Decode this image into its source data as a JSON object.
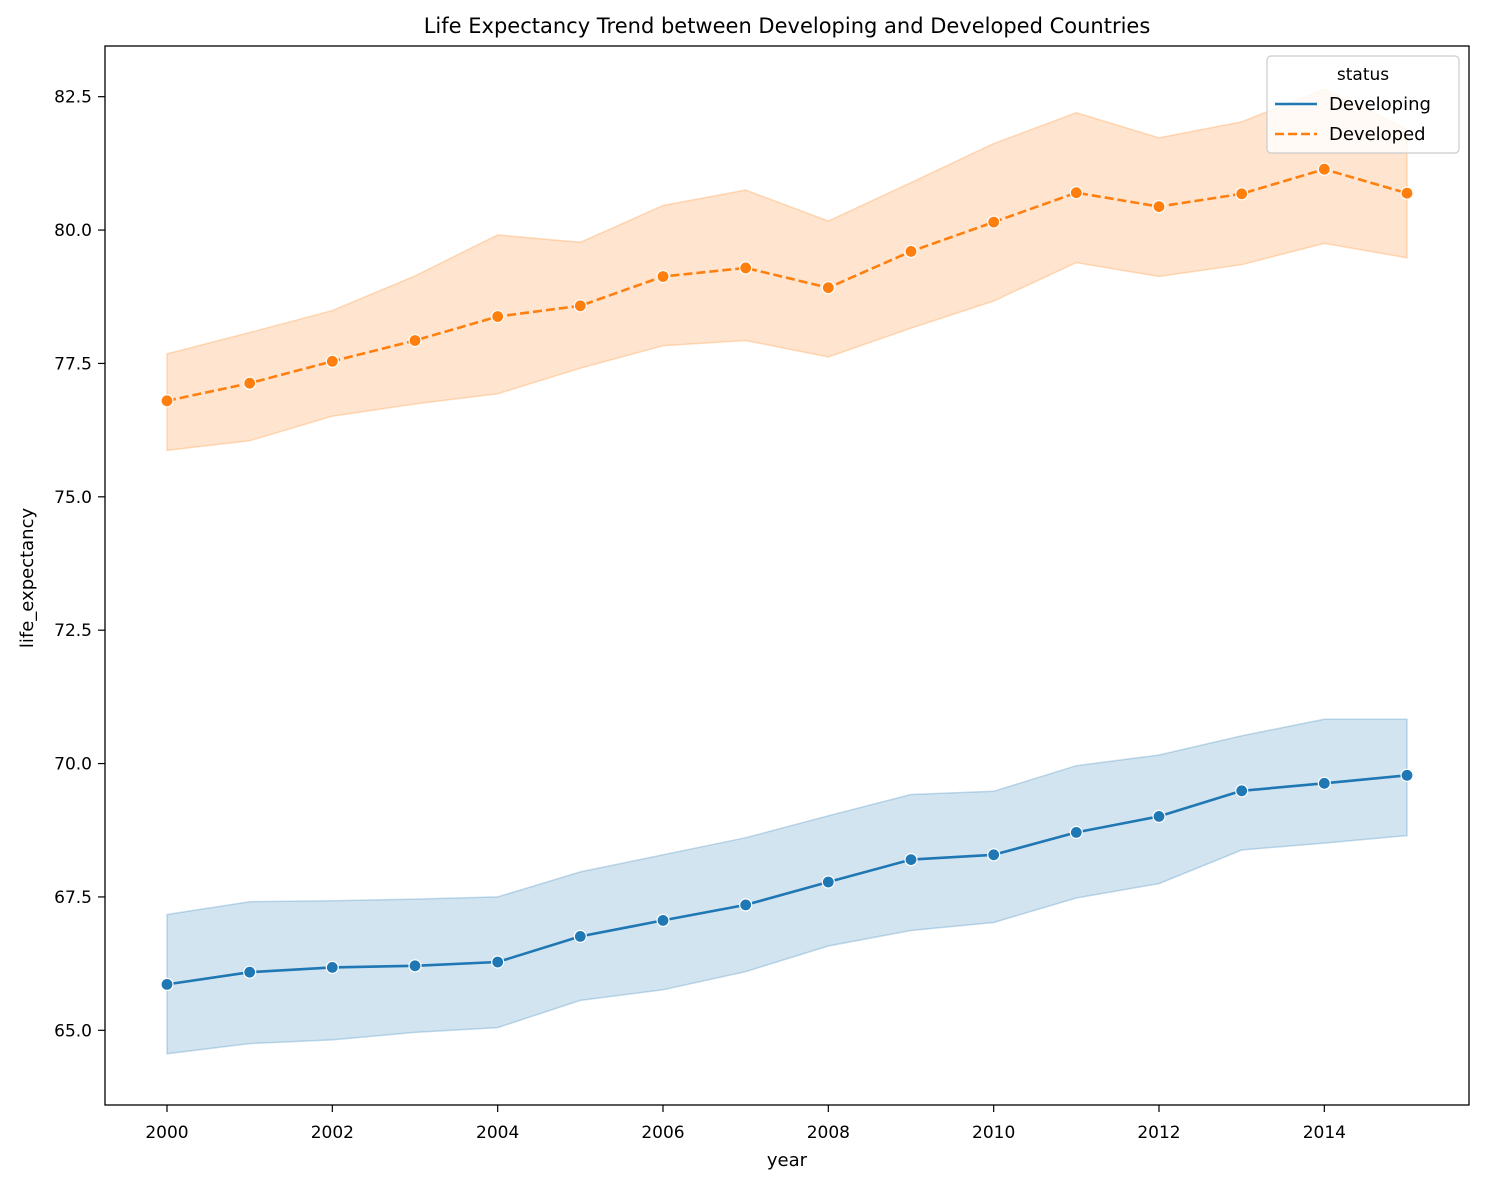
{
  "chart_data": {
    "type": "line",
    "title": "Life Expectancy Trend between Developing and Developed Countries",
    "xlabel": "year",
    "ylabel": "life_expectancy",
    "xlim": [
      1999.25,
      2015.75
    ],
    "ylim": [
      63.6,
      83.45
    ],
    "xticks": [
      2000,
      2002,
      2004,
      2006,
      2008,
      2010,
      2012,
      2014
    ],
    "yticks": [
      65.0,
      67.5,
      70.0,
      72.5,
      75.0,
      77.5,
      80.0,
      82.5
    ],
    "grid": false,
    "legend": {
      "title": "status",
      "placement": "top-right"
    },
    "x": [
      2000,
      2001,
      2002,
      2003,
      2004,
      2005,
      2006,
      2007,
      2008,
      2009,
      2010,
      2011,
      2012,
      2013,
      2014,
      2015
    ],
    "series": [
      {
        "name": "Developing",
        "color": "#1f77b4",
        "band_color": "#1f77b4",
        "line_style": "solid",
        "values": [
          65.86,
          66.09,
          66.18,
          66.21,
          66.28,
          66.76,
          67.06,
          67.35,
          67.78,
          68.2,
          68.29,
          68.71,
          69.01,
          69.49,
          69.63,
          69.78
        ],
        "ci_lower": [
          64.56,
          64.75,
          64.82,
          64.96,
          65.05,
          65.56,
          65.76,
          66.1,
          66.58,
          66.87,
          67.02,
          67.48,
          67.75,
          68.38,
          68.51,
          68.65
        ],
        "ci_upper": [
          67.17,
          67.41,
          67.43,
          67.46,
          67.5,
          67.97,
          68.29,
          68.61,
          69.02,
          69.42,
          69.48,
          69.96,
          70.16,
          70.52,
          70.83,
          70.83
        ]
      },
      {
        "name": "Developed",
        "color": "#ff7f0e",
        "band_color": "#ff7f0e",
        "line_style": "dashed",
        "values": [
          76.8,
          77.13,
          77.54,
          77.93,
          78.38,
          78.58,
          79.13,
          79.29,
          78.92,
          79.6,
          80.15,
          80.7,
          80.44,
          80.68,
          81.14,
          80.69
        ],
        "ci_lower": [
          75.87,
          76.05,
          76.51,
          76.74,
          76.93,
          77.41,
          77.83,
          77.93,
          77.62,
          78.16,
          78.67,
          79.39,
          79.13,
          79.35,
          79.75,
          79.48
        ],
        "ci_upper": [
          77.68,
          78.08,
          78.49,
          79.14,
          79.91,
          79.77,
          80.46,
          80.75,
          80.17,
          80.89,
          81.62,
          82.2,
          81.73,
          82.03,
          82.64,
          81.89
        ]
      }
    ]
  }
}
